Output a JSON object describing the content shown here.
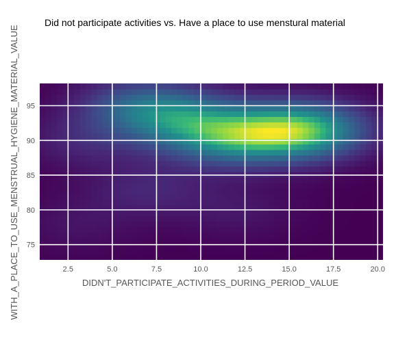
{
  "chart_data": {
    "type": "heatmap",
    "title": "Did not participate activities vs. Have a place to use menstural material",
    "xlabel": "DIDN'T_PARTICIPATE_ACTIVITIES_DURING_PERIOD_VALUE",
    "ylabel": "WITH_A_PLACE_TO_USE_MENSTRUAL_HYGIENE_MATERIAL_VALUE",
    "xlim": [
      0.9,
      20.3
    ],
    "ylim": [
      72.8,
      98.2
    ],
    "xticks": [
      "2.5",
      "5.0",
      "7.5",
      "10.0",
      "12.5",
      "15.0",
      "17.5",
      "20.0"
    ],
    "yticks": [
      "75",
      "80",
      "85",
      "90",
      "95"
    ],
    "colormap": "viridis",
    "grid": true,
    "density_peaks": [
      {
        "x": 16.0,
        "y": 91.5,
        "weight": 1.0
      },
      {
        "x": 13.0,
        "y": 91.0,
        "weight": 0.65
      },
      {
        "x": 9.0,
        "y": 93.0,
        "weight": 0.6
      },
      {
        "x": 6.5,
        "y": 95.0,
        "weight": 0.5
      },
      {
        "x": 11.0,
        "y": 90.0,
        "weight": 0.4
      },
      {
        "x": 3.5,
        "y": 90.0,
        "weight": 0.2
      },
      {
        "x": 7.0,
        "y": 83.0,
        "weight": 0.2
      },
      {
        "x": 12.0,
        "y": 80.0,
        "weight": 0.12
      },
      {
        "x": 3.0,
        "y": 78.0,
        "weight": 0.1
      }
    ]
  }
}
